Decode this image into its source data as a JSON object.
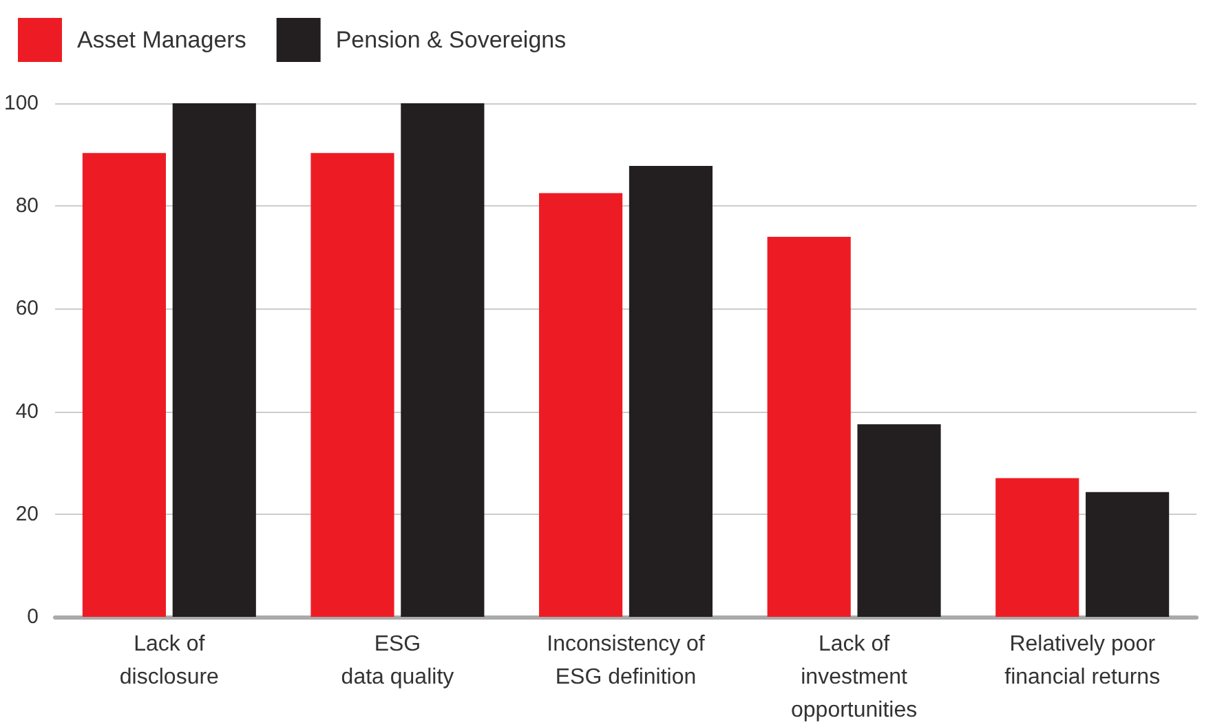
{
  "chart_data": {
    "type": "bar",
    "categories": [
      "Lack of\ndisclosure",
      "ESG\ndata quality",
      "Inconsistency of\nESG definition",
      "Lack of\ninvestment\nopportunities",
      "Relatively poor\nfinancial returns"
    ],
    "series": [
      {
        "name": "Asset Managers",
        "color": "#ed1c24",
        "values": [
          90.3,
          90.3,
          82.5,
          74,
          27
        ]
      },
      {
        "name": "Pension & Sovereigns",
        "color": "#231f20",
        "values": [
          100,
          100,
          87.8,
          37.5,
          24.3
        ]
      }
    ],
    "ylim": [
      0,
      100
    ],
    "yticks": [
      0,
      20,
      40,
      60,
      80,
      100
    ],
    "grid": "y",
    "legend": "top left"
  }
}
